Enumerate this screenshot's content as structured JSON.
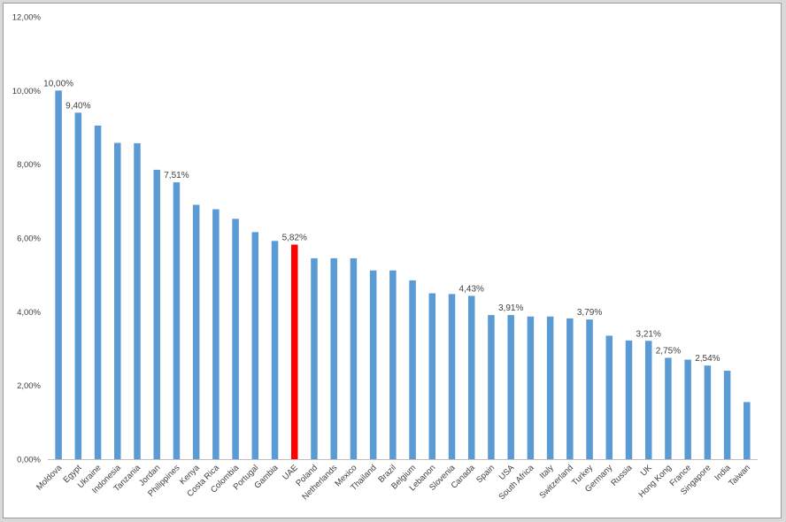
{
  "chart_data": {
    "type": "bar",
    "title": "",
    "xlabel": "",
    "ylabel": "",
    "ylim": [
      0,
      12
    ],
    "y_ticks": [
      "0,00%",
      "2,00%",
      "4,00%",
      "6,00%",
      "8,00%",
      "10,00%",
      "12,00%"
    ],
    "grid": false,
    "legend": "none",
    "bar_color": "#5b9bd5",
    "highlight_color": "#ff0000",
    "categories": [
      "Moldova",
      "Egypt",
      "Ukraine",
      "Indonesia",
      "Tanzania",
      "Jordan",
      "Philippines",
      "Kenya",
      "Costa Rica",
      "Colombia",
      "Portugal",
      "Gambia",
      "UAE",
      "Poland",
      "Netherlands",
      "Mexico",
      "Thailand",
      "Brazil",
      "Belgium",
      "Lebanon",
      "Slovenia",
      "Canada",
      "Spain",
      "USA",
      "South Africa",
      "Italy",
      "Switzerland",
      "Turkey",
      "Germany",
      "Russia",
      "UK",
      "Hong Kong",
      "France",
      "Singapore",
      "India",
      "Taiwan"
    ],
    "values": [
      10.0,
      9.4,
      9.05,
      8.58,
      8.57,
      7.85,
      7.51,
      6.9,
      6.78,
      6.52,
      6.16,
      5.92,
      5.82,
      5.45,
      5.45,
      5.45,
      5.12,
      5.12,
      4.85,
      4.5,
      4.48,
      4.43,
      3.91,
      3.91,
      3.87,
      3.87,
      3.82,
      3.79,
      3.35,
      3.22,
      3.21,
      2.75,
      2.7,
      2.54,
      2.4,
      1.55
    ],
    "highlight": "UAE",
    "data_labels": [
      {
        "category": "Moldova",
        "text": "10,00%"
      },
      {
        "category": "Egypt",
        "text": "9,40%"
      },
      {
        "category": "Philippines",
        "text": "7,51%"
      },
      {
        "category": "UAE",
        "text": "5,82%"
      },
      {
        "category": "Canada",
        "text": "4,43%"
      },
      {
        "category": "USA",
        "text": "3,91%"
      },
      {
        "category": "Turkey",
        "text": "3,79%"
      },
      {
        "category": "UK",
        "text": "3,21%"
      },
      {
        "category": "Hong Kong",
        "text": "2,75%"
      },
      {
        "category": "Singapore",
        "text": "2,54%"
      }
    ]
  }
}
